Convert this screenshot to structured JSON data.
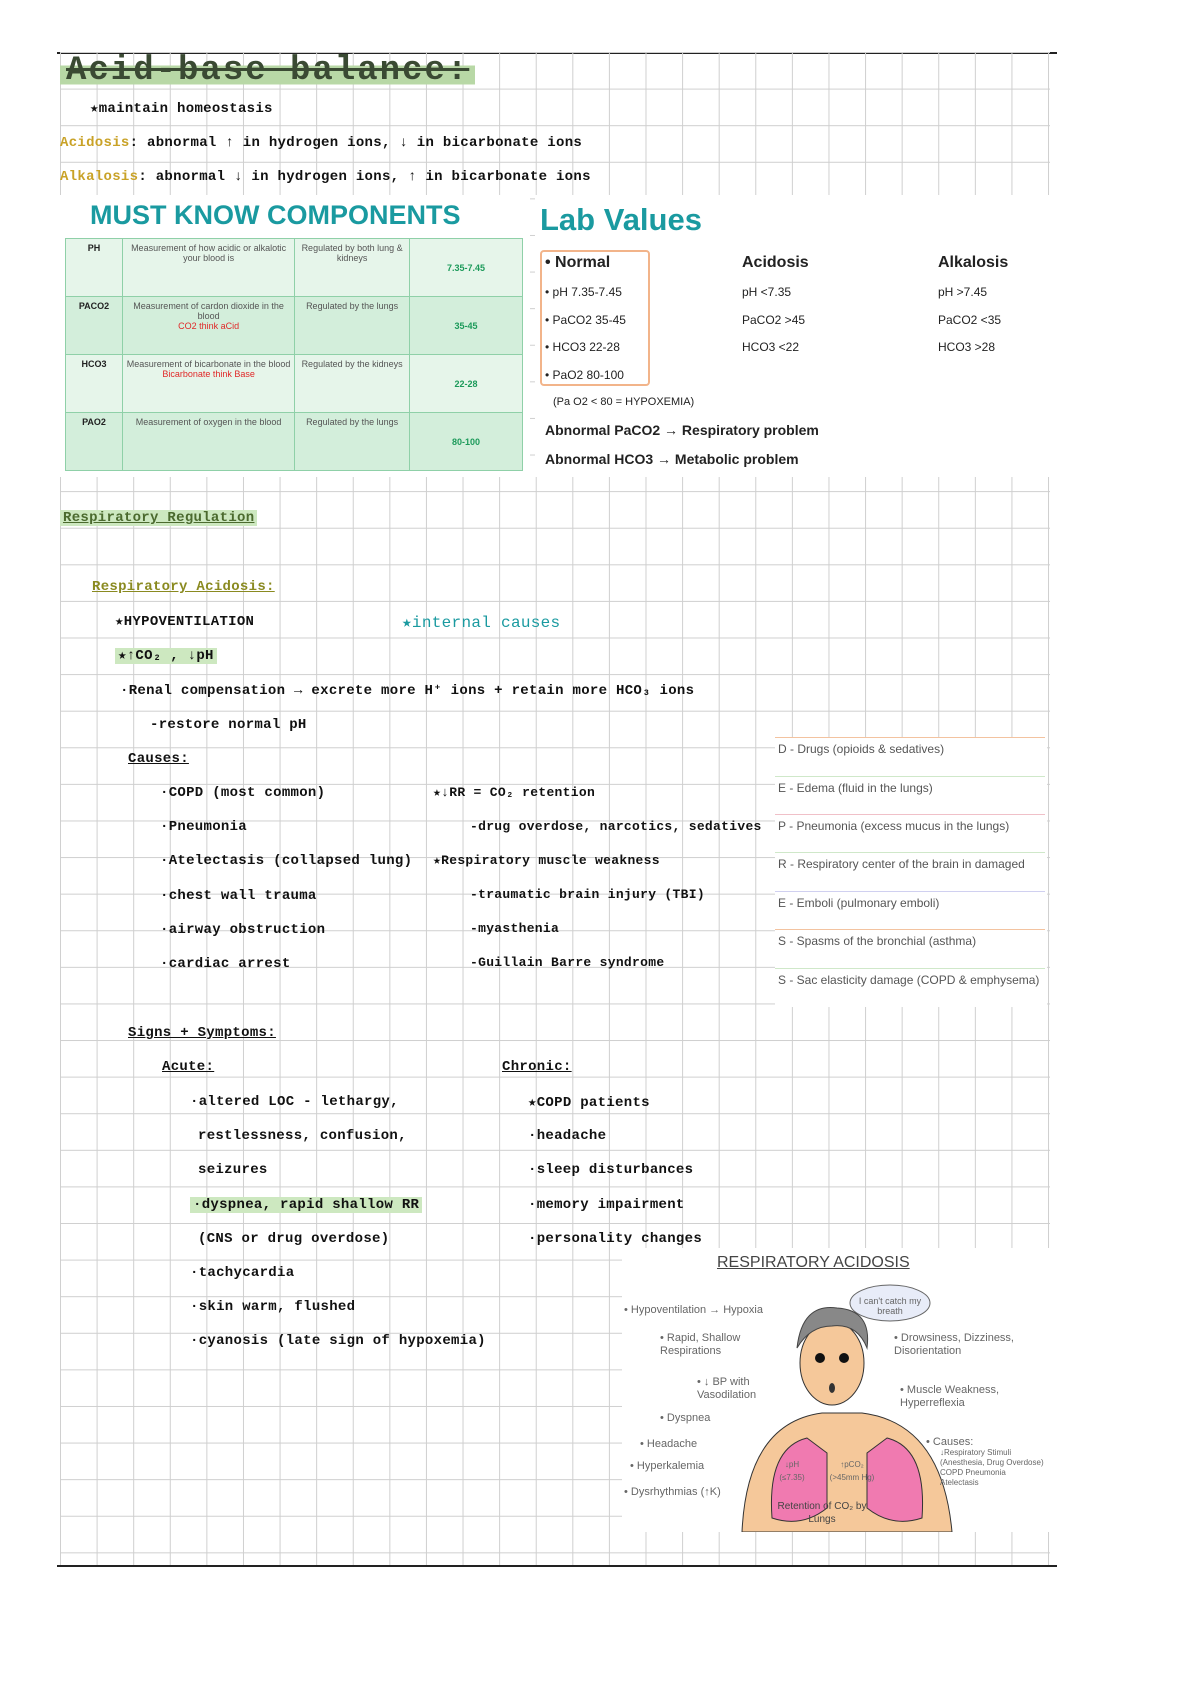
{
  "title": "Acid-base balance:",
  "intro": {
    "maintain": "★maintain homeostasis",
    "acidosis_label": "Acidosis",
    "acidosis_text": ": abnormal ↑ in hydrogen ions, ↓ in bicarbonate ions",
    "alkalosis_label": "Alkalosis",
    "alkalosis_text": ": abnormal ↓ in hydrogen ions, ↑ in bicarbonate ions"
  },
  "components": {
    "heading": "MUST KNOW COMPONENTS",
    "rows": [
      {
        "name": "PH",
        "desc": "Measurement of how acidic or alkalotic your blood is",
        "note": "",
        "reg": "Regulated by both lung & kidneys",
        "value": "7.35-7.45"
      },
      {
        "name": "PACO2",
        "desc": "Measurement of cardon dioxide in the blood",
        "note": "CO2 think aCid",
        "reg": "Regulated by the lungs",
        "value": "35-45"
      },
      {
        "name": "HCO3",
        "desc": "Measurement of bicarbonate in the blood",
        "note": "Bicarbonate think Base",
        "reg": "Regulated by the kidneys",
        "value": "22-28"
      },
      {
        "name": "PAO2",
        "desc": "Measurement of oxygen in the blood",
        "note": "",
        "reg": "Regulated by the lungs",
        "value": "80-100"
      }
    ]
  },
  "lab": {
    "heading": "Lab Values",
    "cols": [
      "• Normal",
      "Acidosis",
      "Alkalosis"
    ],
    "normal": [
      "• pH 7.35-7.45",
      "• PaCO2  35-45",
      "• HCO3  22-28",
      "• PaO2    80-100"
    ],
    "acidosis": [
      "pH  <7.35",
      "PaCO2  >45",
      "HCO3  <22"
    ],
    "alkalosis": [
      "pH  >7.45",
      "PaCO2  <35",
      "HCO3  >28"
    ],
    "hypoxemia": "(Pa O2  < 80 = HYPOXEMIA)",
    "abnormal1": "Abnormal PaCO2 → Respiratory problem",
    "abnormal2": "Abnormal HCO3 → Metabolic problem"
  },
  "resp": {
    "heading": "Respiratory Regulation",
    "sub": "Respiratory Acidosis:",
    "hypo": "★HYPOVENTILATION",
    "internal": "★internal causes",
    "co2": "★↑CO₂ , ↓pH",
    "renal": "·Renal compensation → excrete more H⁺ ions + retain more HCO₃ ions",
    "restore": "-restore normal pH",
    "causes": "Causes:",
    "causes_left": [
      "·COPD (most common)",
      "·Pneumonia",
      "·Atelectasis (collapsed lung)",
      "·chest wall trauma",
      "·airway obstruction",
      "·cardiac arrest"
    ],
    "causes_right": [
      "★↓RR = CO₂ retention",
      "-drug overdose, narcotics, sedatives",
      "★Respiratory muscle weakness",
      "-traumatic brain injury (TBI)",
      "-myasthenia",
      "-Guillain Barre syndrome"
    ]
  },
  "depress": [
    "D - Drugs (opioids & sedatives)",
    "E - Edema (fluid in the lungs)",
    "P - Pneumonia (excess mucus in the lungs)",
    "R - Respiratory center of the brain in damaged",
    "E - Emboli (pulmonary emboli)",
    "S - Spasms of the bronchial (asthma)",
    "S - Sac elasticity damage (COPD & emphysema)"
  ],
  "signs": {
    "heading": "Signs + Symptoms:",
    "acute_label": "Acute:",
    "chronic_label": "Chronic:",
    "acute": [
      "·altered LOC - lethargy,",
      "restlessness, confusion,",
      "seizures",
      "·dyspnea, rapid shallow RR",
      "(CNS or drug overdose)",
      "·tachycardia",
      "·skin warm, flushed",
      "·cyanosis (late sign of hypoxemia)"
    ],
    "chronic": [
      "★COPD patients",
      "·headache",
      "·sleep disturbances",
      "·memory impairment",
      "·personality changes"
    ]
  },
  "illustration": {
    "title": "RESPIRATORY ACIDOSIS",
    "bubble": "I can't catch my breath",
    "left": [
      "• Hypoventilation → Hypoxia",
      "• Rapid, Shallow Respirations",
      "• ↓ BP with Vasodilation",
      "• Dyspnea",
      "• Headache",
      "• Hyperkalemia",
      "• Dysrhythmias (↑K)"
    ],
    "right": [
      "• Drowsiness, Dizziness, Disorientation",
      "• Muscle Weakness, Hyperreflexia",
      "• Causes:",
      "↓Respiratory Stimuli (Anesthesia, Drug Overdose) COPD Pneumonia Atelectasis"
    ],
    "ph": "↓pH (≤7.35)",
    "pco2": "↑pCO₂ (>45mm Hg)",
    "retention": "Retention of CO₂ by Lungs"
  },
  "colors": {
    "teal": "#1a9aa0",
    "green_highlight": "#cde8c0",
    "table_green": "#d3eedb",
    "normal_border": "#f2b48a",
    "yellow_label": "#c9a227"
  }
}
